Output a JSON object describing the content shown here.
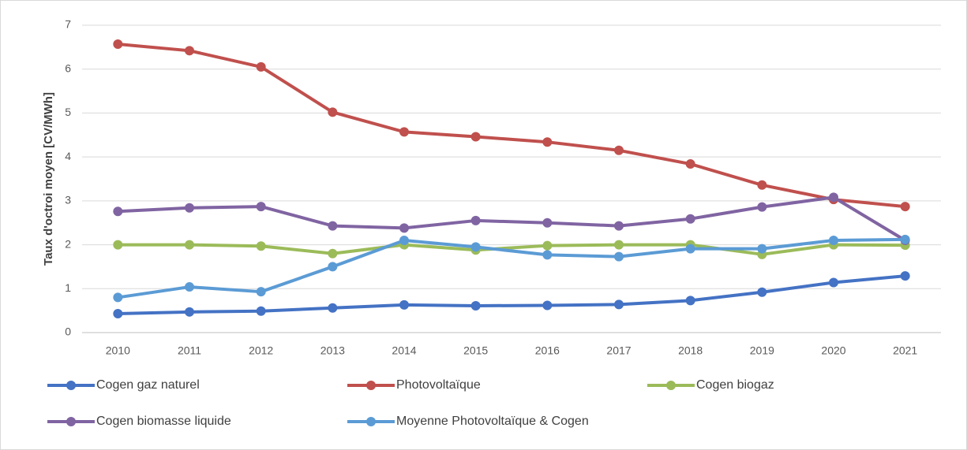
{
  "chart_data": {
    "type": "line",
    "y_label": "Taux d'octroi moyen [CV/MWh]",
    "categories": [
      "2010",
      "2011",
      "2012",
      "2013",
      "2014",
      "2015",
      "2016",
      "2017",
      "2018",
      "2019",
      "2020",
      "2021"
    ],
    "series": [
      {
        "name": "Cogen gaz naturel",
        "color": "#4472c4",
        "values": [
          0.43,
          0.47,
          0.49,
          0.56,
          0.63,
          0.61,
          0.62,
          0.64,
          0.73,
          0.92,
          1.14,
          1.29
        ]
      },
      {
        "name": "Photovoltaïque",
        "color": "#c0504d",
        "values": [
          6.57,
          6.42,
          6.05,
          5.02,
          4.57,
          4.46,
          4.34,
          4.15,
          3.84,
          3.36,
          3.03,
          2.87
        ]
      },
      {
        "name": "Cogen biogaz",
        "color": "#9bbb59",
        "values": [
          2.0,
          2.0,
          1.97,
          1.8,
          2.0,
          1.88,
          1.98,
          2.0,
          2.0,
          1.78,
          2.0,
          1.99
        ]
      },
      {
        "name": "Cogen biomasse liquide",
        "color": "#8064a2",
        "values": [
          2.76,
          2.84,
          2.87,
          2.43,
          2.38,
          2.55,
          2.5,
          2.43,
          2.59,
          2.86,
          3.08,
          2.1
        ]
      },
      {
        "name": "Moyenne Photovoltaïque & Cogen",
        "color": "#5b9bd5",
        "values": [
          0.8,
          1.04,
          0.93,
          1.5,
          2.1,
          1.95,
          1.77,
          1.73,
          1.91,
          1.91,
          2.1,
          2.12
        ]
      }
    ],
    "ylim": [
      0,
      7
    ],
    "yticks": [
      0,
      1,
      2,
      3,
      4,
      5,
      6,
      7
    ],
    "grid": true,
    "legend": "bottom"
  }
}
